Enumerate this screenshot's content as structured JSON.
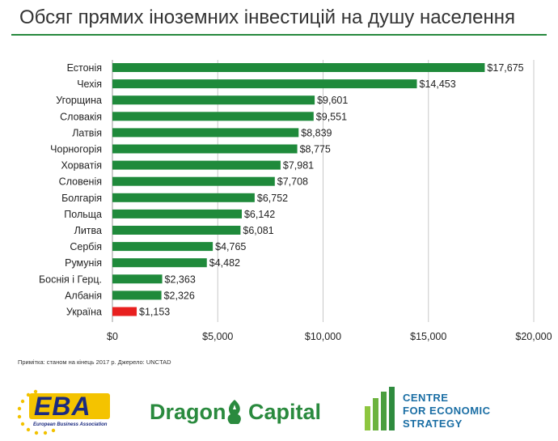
{
  "title": "Обсяг прямих іноземних інвестицій на душу населення",
  "note": "Примітка: станом на кінець 2017 р. Джерело: UNCTAD",
  "chart_data": {
    "type": "bar",
    "orientation": "horizontal",
    "categories": [
      "Естонія",
      "Чехія",
      "Угорщина",
      "Словакія",
      "Латвія",
      "Чорногорія",
      "Хорватія",
      "Словенія",
      "Болгарія",
      "Польща",
      "Литва",
      "Сербія",
      "Румунія",
      "Боснія і Герц.",
      "Албанія",
      "Україна"
    ],
    "values": [
      17675,
      14453,
      9601,
      9551,
      8839,
      8775,
      7981,
      7708,
      6752,
      6142,
      6081,
      4765,
      4482,
      2363,
      2326,
      1153
    ],
    "value_labels": [
      "$17,675",
      "$14,453",
      "$9,601",
      "$9,551",
      "$8,839",
      "$8,775",
      "$7,981",
      "$7,708",
      "$6,752",
      "$6,142",
      "$6,081",
      "$4,765",
      "$4,482",
      "$2,363",
      "$2,326",
      "$1,153"
    ],
    "highlight": "Україна",
    "xlim": [
      0,
      20000
    ],
    "xticks": [
      0,
      5000,
      10000,
      15000,
      20000
    ],
    "xtick_labels": [
      "$0",
      "$5,000",
      "$10,000",
      "$15,000",
      "$20,000"
    ],
    "grid": true,
    "colors": {
      "bar": "#1f8a3b",
      "highlight": "#e8201f",
      "grid": "#c8c8c8"
    }
  },
  "logos": {
    "eba": {
      "text": "EBA",
      "subtitle": "European Business Association"
    },
    "dragon": {
      "left": "Dragon",
      "right": "Capital"
    },
    "ces": {
      "lines": [
        "CENTRE",
        "FOR ECONOMIC",
        "STRATEGY"
      ]
    }
  }
}
